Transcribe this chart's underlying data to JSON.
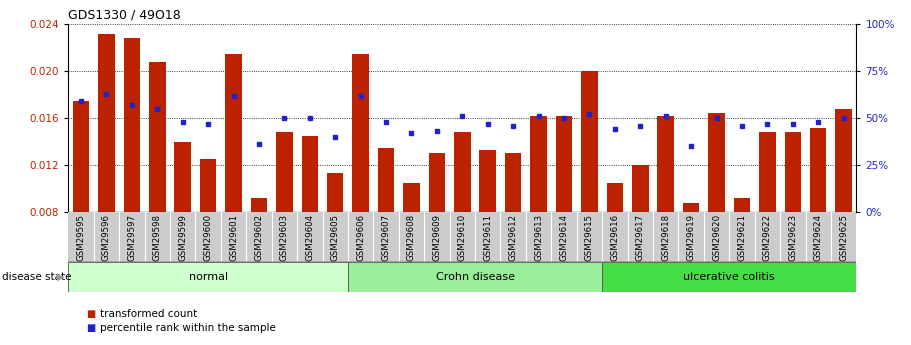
{
  "title": "GDS1330 / 49O18",
  "samples": [
    "GSM29595",
    "GSM29596",
    "GSM29597",
    "GSM29598",
    "GSM29599",
    "GSM29600",
    "GSM29601",
    "GSM29602",
    "GSM29603",
    "GSM29604",
    "GSM29605",
    "GSM29606",
    "GSM29607",
    "GSM29608",
    "GSM29609",
    "GSM29610",
    "GSM29611",
    "GSM29612",
    "GSM29613",
    "GSM29614",
    "GSM29615",
    "GSM29616",
    "GSM29617",
    "GSM29618",
    "GSM29619",
    "GSM29620",
    "GSM29621",
    "GSM29622",
    "GSM29623",
    "GSM29624",
    "GSM29625"
  ],
  "transformed_count": [
    0.0175,
    0.0232,
    0.0228,
    0.0208,
    0.014,
    0.0125,
    0.0215,
    0.0092,
    0.0148,
    0.0145,
    0.0113,
    0.0215,
    0.0135,
    0.0105,
    0.013,
    0.0148,
    0.0133,
    0.013,
    0.0162,
    0.0162,
    0.02,
    0.0105,
    0.012,
    0.0162,
    0.0088,
    0.0164,
    0.0092,
    0.0148,
    0.0148,
    0.0152,
    0.0168
  ],
  "percentile_rank": [
    59,
    63,
    57,
    55,
    48,
    47,
    62,
    36,
    50,
    50,
    40,
    62,
    48,
    42,
    43,
    51,
    47,
    46,
    51,
    50,
    52,
    44,
    46,
    51,
    35,
    50,
    46,
    47,
    47,
    48,
    50
  ],
  "groups": [
    {
      "label": "normal",
      "start": 0,
      "end": 10,
      "color": "#ccffcc"
    },
    {
      "label": "Crohn disease",
      "start": 11,
      "end": 20,
      "color": "#99ee99"
    },
    {
      "label": "ulcerative colitis",
      "start": 21,
      "end": 30,
      "color": "#44dd44"
    }
  ],
  "ylim_left": [
    0.008,
    0.024
  ],
  "ylim_right": [
    0,
    100
  ],
  "yticks_left": [
    0.008,
    0.012,
    0.016,
    0.02,
    0.024
  ],
  "yticks_right": [
    0,
    25,
    50,
    75,
    100
  ],
  "bar_color": "#bb2200",
  "dot_color": "#2222cc",
  "legend_bar_label": "transformed count",
  "legend_dot_label": "percentile rank within the sample",
  "disease_state_label": "disease state"
}
